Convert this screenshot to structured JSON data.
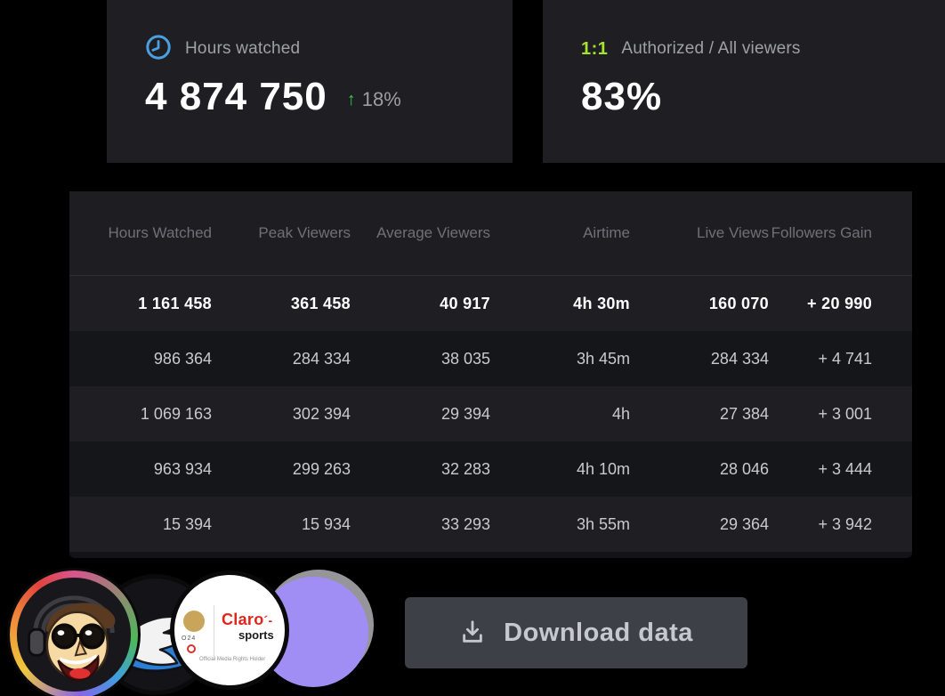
{
  "colors": {
    "accent_green": "#a6e22e",
    "trend_green": "#35c759",
    "icon_blue": "#4aa0e0",
    "purple_avatar": "#a18ef4",
    "card_bg": "#1e1e23",
    "row_light": "#1e1e23",
    "row_dark": "#15161a"
  },
  "cards": {
    "hours_watched": {
      "icon": "clock-icon",
      "label": "Hours watched",
      "value": "4 874 750",
      "trend_arrow": "↑",
      "trend_value": "18%"
    },
    "authorized": {
      "badge": "1:1",
      "label": "Authorized / All viewers",
      "value": "83%"
    }
  },
  "table": {
    "columns": [
      "Hours Watched",
      "Peak Viewers",
      "Average Viewers",
      "Airtime",
      "Live Views",
      "Followers Gain"
    ],
    "rows": [
      [
        "1 161 458",
        "361 458",
        "40 917",
        "4h 30m",
        "160 070",
        "+ 20 990"
      ],
      [
        "986 364",
        "284 334",
        "38 035",
        "3h 45m",
        "284 334",
        "+ 4 741"
      ],
      [
        "1 069 163",
        "302 394",
        "29 394",
        "4h",
        "27 384",
        "+ 3 001"
      ],
      [
        "963 934",
        "299 263",
        "32 283",
        "4h 10m",
        "28 046",
        "+ 3 444"
      ],
      [
        "15 394",
        "15 934",
        "33 293",
        "3h 55m",
        "29 364",
        "+ 3 942"
      ]
    ],
    "highlighted_row_index": 0
  },
  "avatars": [
    {
      "name": "streamer-cartoon-avatar"
    },
    {
      "name": "winged-foot-avatar"
    },
    {
      "name": "claro-sports-avatar",
      "brand": "Claro",
      "accent": "´-",
      "brand_sub": "sports",
      "year_fragment": "O24",
      "rights_text": "Official Media Rights Holder"
    },
    {
      "name": "purple-avatar"
    }
  ],
  "download": {
    "icon": "download-icon",
    "label": "Download data"
  }
}
